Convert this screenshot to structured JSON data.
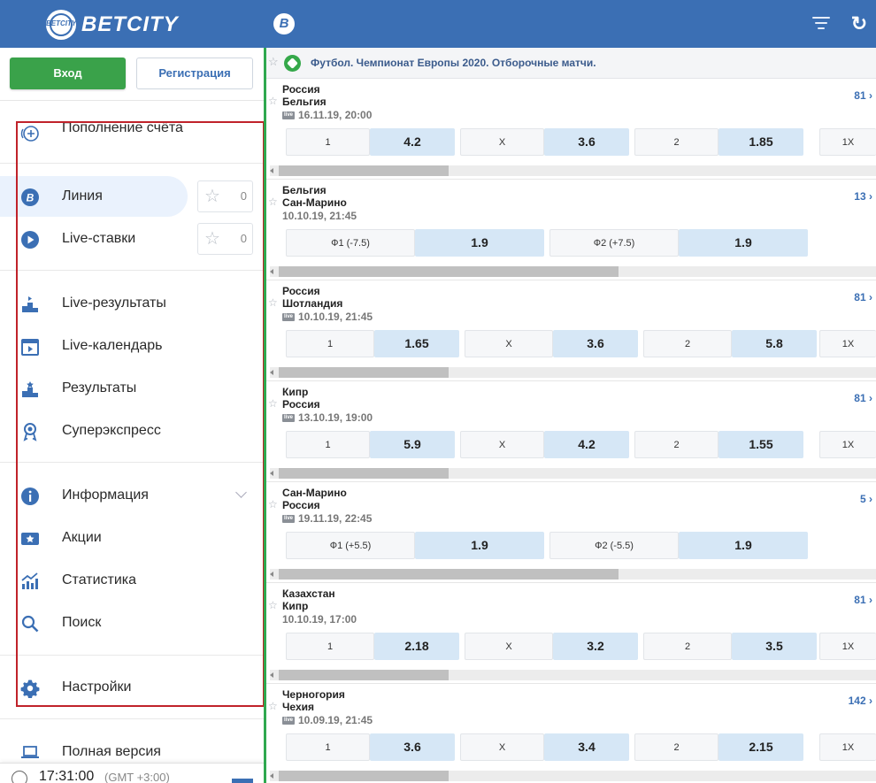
{
  "brand": {
    "name": "BETCITY",
    "badge": "B",
    "ball_text": "BETCITY"
  },
  "icons": {
    "filter": "filter-lines-icon",
    "refresh": "refresh-icon"
  },
  "auth": {
    "login": "Вход",
    "register": "Регистрация"
  },
  "sidebar": {
    "deposit": "Пополнение счёта",
    "line": {
      "label": "Линия",
      "fav_count": "0"
    },
    "live_bets": {
      "label": "Live-ставки",
      "fav_count": "0"
    },
    "live_results": "Live-результаты",
    "live_calendar": "Live-календарь",
    "results": "Результаты",
    "superexpress": "Суперэкспресс",
    "information": "Информация",
    "promotions": "Акции",
    "statistics": "Статистика",
    "search": "Поиск",
    "settings": "Настройки",
    "full_version": "Полная версия",
    "time": "17:31:00",
    "timezone": "(GMT +3:00)"
  },
  "league": {
    "title": "Футбол. Чемпионат Европы 2020. Отборочные матчи."
  },
  "matches": [
    {
      "team1": "Россия",
      "team2": "Бельгия",
      "date": "16.11.19, 20:00",
      "live": true,
      "more": "81",
      "markets": [
        {
          "label": "1",
          "odd": "4.2"
        },
        {
          "label": "X",
          "odd": "3.6"
        },
        {
          "label": "2",
          "odd": "1.85"
        }
      ],
      "extra": "1X",
      "scroll_fraction": 0.28
    },
    {
      "team1": "Бельгия",
      "team2": "Сан-Марино",
      "date": "10.10.19, 21:45",
      "live": false,
      "more": "13",
      "markets": [
        {
          "label": "Ф1 (-7.5)",
          "odd": "1.9"
        },
        {
          "label": "Ф2 (+7.5)",
          "odd": "1.9"
        }
      ],
      "extra": "",
      "scroll_fraction": 0.56
    },
    {
      "team1": "Россия",
      "team2": "Шотландия",
      "date": "10.10.19, 21:45",
      "live": true,
      "more": "81",
      "markets": [
        {
          "label": "1",
          "odd": "1.65"
        },
        {
          "label": "X",
          "odd": "3.6"
        },
        {
          "label": "2",
          "odd": "5.8"
        }
      ],
      "extra": "1X",
      "scroll_fraction": 0.28
    },
    {
      "team1": "Кипр",
      "team2": "Россия",
      "date": "13.10.19, 19:00",
      "live": true,
      "more": "81",
      "markets": [
        {
          "label": "1",
          "odd": "5.9"
        },
        {
          "label": "X",
          "odd": "4.2"
        },
        {
          "label": "2",
          "odd": "1.55"
        }
      ],
      "extra": "1X",
      "scroll_fraction": 0.28
    },
    {
      "team1": "Сан-Марино",
      "team2": "Россия",
      "date": "19.11.19, 22:45",
      "live": true,
      "more": "5",
      "markets": [
        {
          "label": "Ф1 (+5.5)",
          "odd": "1.9"
        },
        {
          "label": "Ф2 (-5.5)",
          "odd": "1.9"
        }
      ],
      "extra": "",
      "scroll_fraction": 0.56
    },
    {
      "team1": "Казахстан",
      "team2": "Кипр",
      "date": "10.10.19, 17:00",
      "live": false,
      "more": "81",
      "markets": [
        {
          "label": "1",
          "odd": "2.18"
        },
        {
          "label": "X",
          "odd": "3.2"
        },
        {
          "label": "2",
          "odd": "3.5"
        }
      ],
      "extra": "1X",
      "scroll_fraction": 0.28
    },
    {
      "team1": "Черногория",
      "team2": "Чехия",
      "date": "10.09.19, 21:45",
      "live": true,
      "more": "142",
      "markets": [
        {
          "label": "1",
          "odd": "3.6"
        },
        {
          "label": "X",
          "odd": "3.4"
        },
        {
          "label": "2",
          "odd": "2.15"
        }
      ],
      "extra": "1X",
      "scroll_fraction": 0.28
    }
  ]
}
